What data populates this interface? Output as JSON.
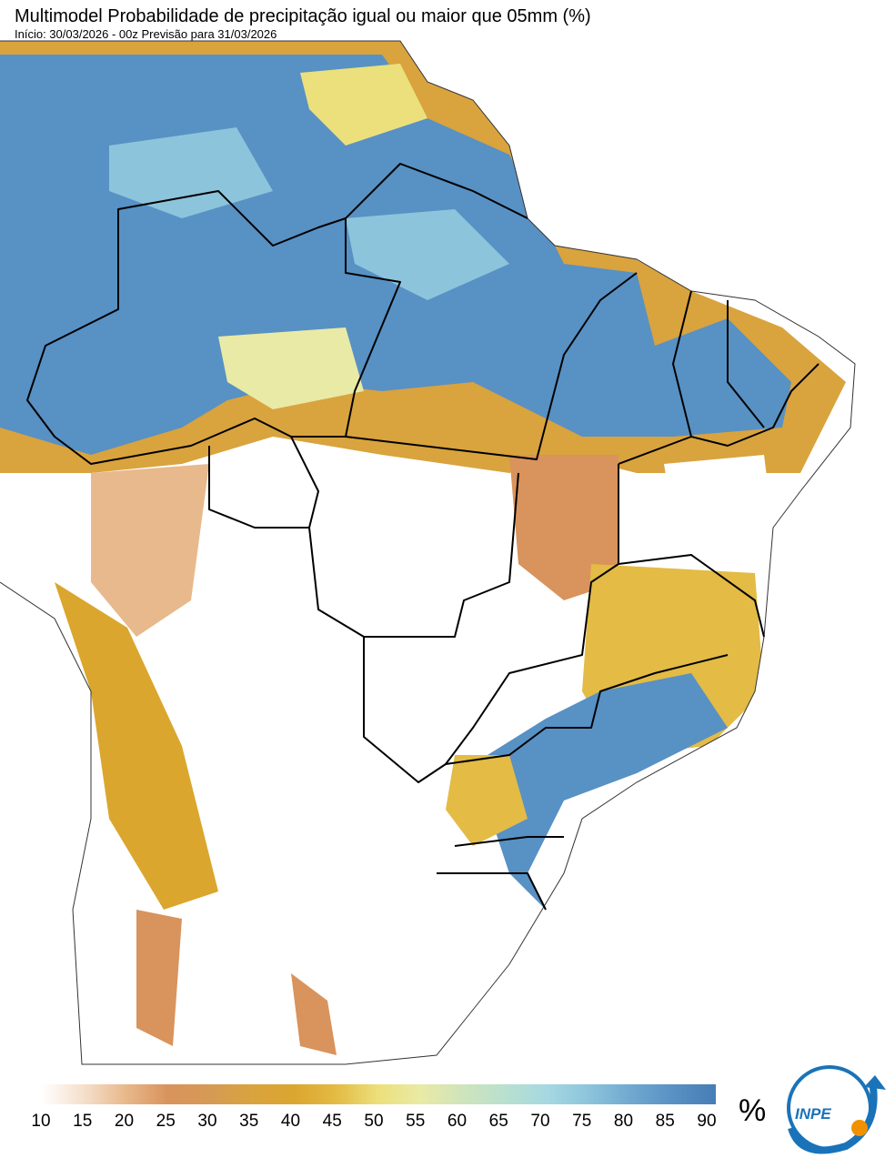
{
  "header": {
    "title": "Multimodel Probabilidade de precipitação igual ou maior que 05mm (%)",
    "subtitle": "Início: 30/03/2026 - 00z  Previsão para 31/03/2026"
  },
  "colorbar": {
    "range": [
      10,
      90
    ],
    "ticks": [
      10,
      15,
      20,
      25,
      30,
      35,
      40,
      45,
      50,
      55,
      60,
      65,
      70,
      75,
      80,
      85,
      90
    ],
    "colors": [
      "#ffffff",
      "#f5e0cc",
      "#e8b98c",
      "#d9935c",
      "#d69a55",
      "#d9a33e",
      "#dba62e",
      "#e3bb45",
      "#ece07c",
      "#e9eaa6",
      "#cfe4bb",
      "#b9e0cf",
      "#a6d8e2",
      "#8cc4dc",
      "#6fa8d0",
      "#5891c4",
      "#477db6"
    ],
    "unit": "%"
  },
  "logo": {
    "text": "INPE"
  }
}
